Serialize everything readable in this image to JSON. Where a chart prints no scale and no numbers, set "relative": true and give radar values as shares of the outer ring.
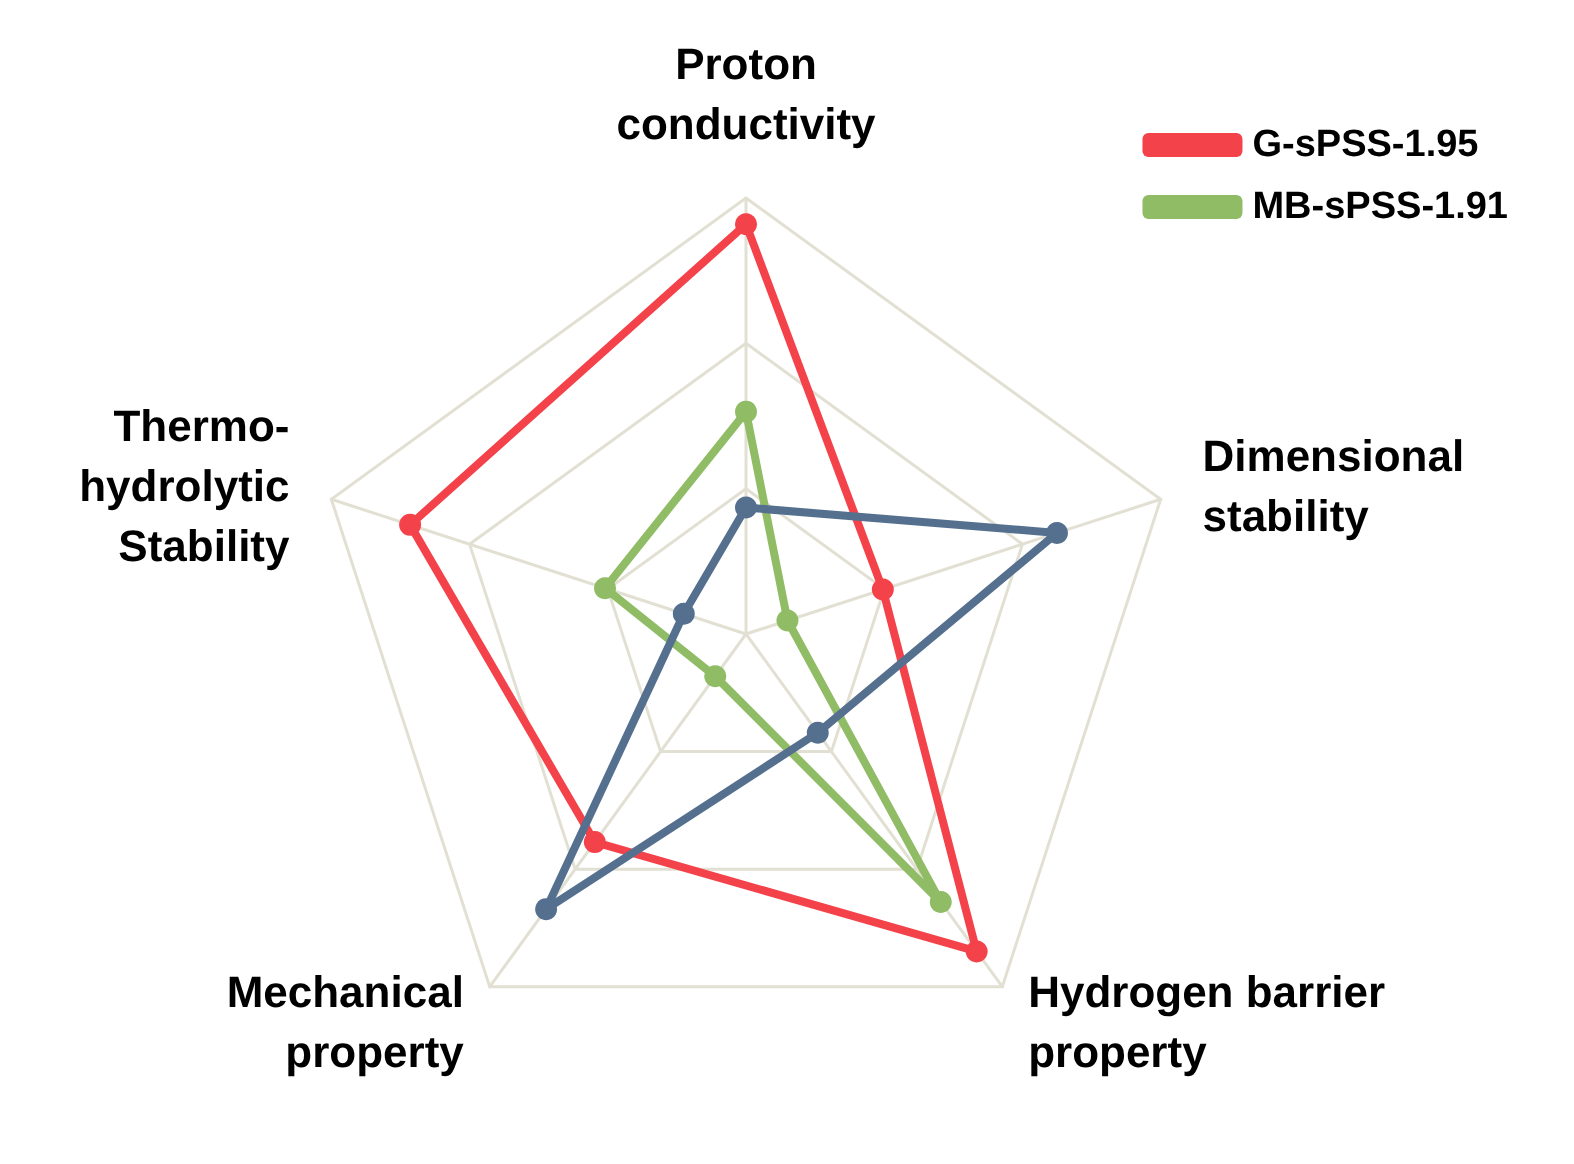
{
  "chart_data": {
    "type": "radar",
    "relative": true,
    "categories": [
      "Proton\nconductivity",
      "Dimensional\nstability",
      "Hydrogen barrier\nproperty",
      "Mechanical\nproperty",
      "Thermo-\nhydrolytic\nStability"
    ],
    "series": [
      {
        "name": "G-sPSS-1.95",
        "color": "#f4424a",
        "values": [
          0.94,
          0.33,
          0.9,
          0.59,
          0.81
        ]
      },
      {
        "name": "MB-sPSS-1.91",
        "color": "#8fbc65",
        "values": [
          0.51,
          0.1,
          0.76,
          0.12,
          0.34
        ]
      },
      {
        "color": "#55708f",
        "values": [
          0.29,
          0.75,
          0.28,
          0.78,
          0.15
        ]
      }
    ],
    "grid": true,
    "legend": "top right",
    "marker": "circle",
    "line_style": "solid"
  }
}
